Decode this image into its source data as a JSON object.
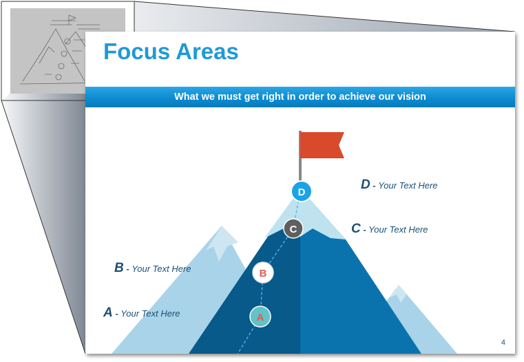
{
  "slide": {
    "title": "Focus Areas",
    "banner": "What we must get right in order to achieve our vision",
    "page_number": "4"
  },
  "markers": [
    {
      "letter": "A",
      "text": "Your Text Here"
    },
    {
      "letter": "B",
      "text": "Your Text Here"
    },
    {
      "letter": "C",
      "text": "Your Text Here"
    },
    {
      "letter": "D",
      "text": "Your Text Here"
    }
  ],
  "colors": {
    "title": "#1f9ad6",
    "banner": "#0c8cd0",
    "label": "#1c4f76",
    "peak_light": "#a9d3e8",
    "peak_main": "#075a8a",
    "peak_mid": "#0a73ae",
    "flag": "#d9492b",
    "marker_d": "#1aa3e6",
    "marker_c": "#5f5f5f",
    "marker_b_text": "#e05a52",
    "marker_a_bg": "#61c3c8"
  },
  "icons": [
    "flag-icon",
    "mountain-illustration",
    "sketch-thumbnail"
  ]
}
